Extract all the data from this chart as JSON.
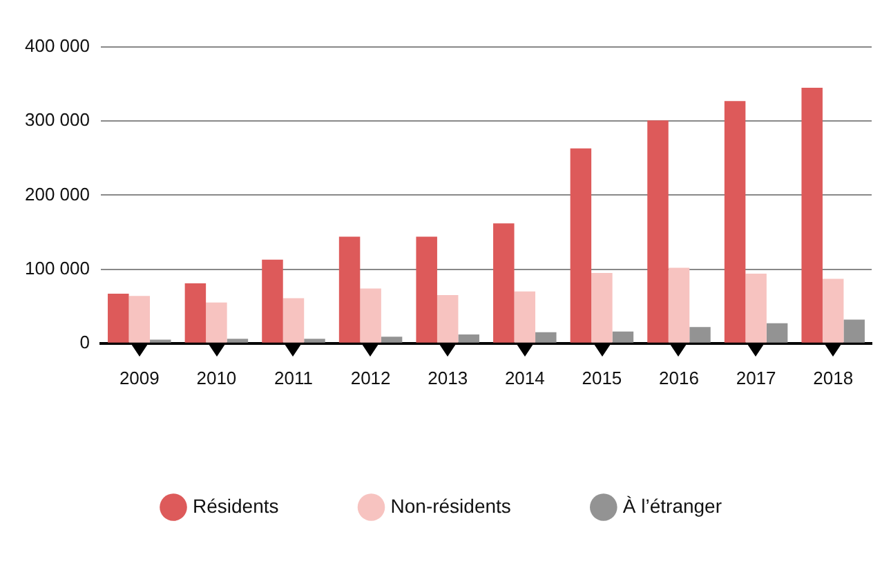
{
  "chart_data": {
    "type": "bar",
    "categories": [
      "2009",
      "2010",
      "2011",
      "2012",
      "2013",
      "2014",
      "2015",
      "2016",
      "2017",
      "2018"
    ],
    "series": [
      {
        "name": "Résidents",
        "color": "#dd5a5a",
        "values": [
          67000,
          81000,
          113000,
          144000,
          144000,
          162000,
          263000,
          301000,
          327000,
          345000
        ]
      },
      {
        "name": "Non-résidents",
        "color": "#f7c3c0",
        "values": [
          64000,
          55000,
          61000,
          74000,
          65000,
          70000,
          95000,
          102000,
          94000,
          87000
        ]
      },
      {
        "name": "À l’étranger",
        "color": "#939393",
        "values": [
          5000,
          6000,
          6000,
          9000,
          12000,
          15000,
          16000,
          22000,
          27000,
          32000
        ]
      }
    ],
    "ylim": [
      0,
      400000
    ],
    "yticks": [
      0,
      {
        "value": 100000,
        "label": "100 000"
      },
      {
        "value": 200000,
        "label": "200 000"
      },
      {
        "value": 300000,
        "label": "300 000"
      },
      {
        "value": 400000,
        "label": "400 000"
      }
    ],
    "grid": "y",
    "legend": "bottom"
  }
}
